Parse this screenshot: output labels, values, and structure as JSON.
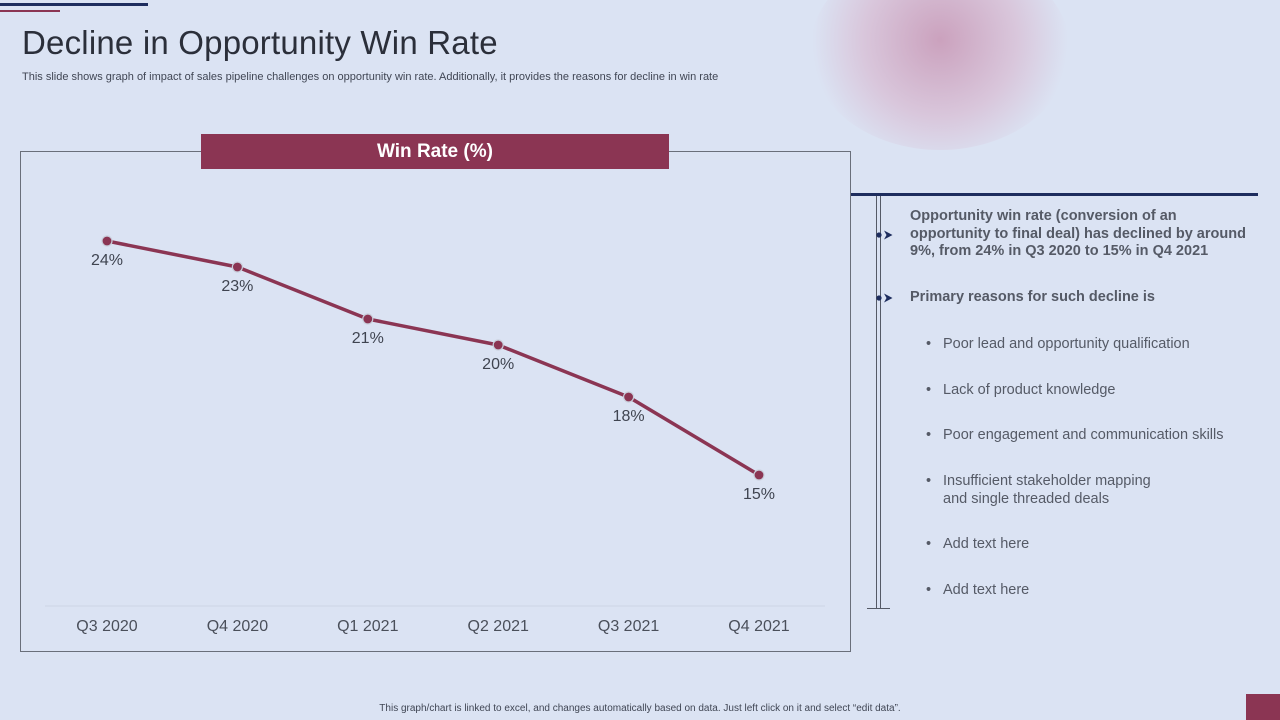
{
  "title": "Decline in Opportunity Win Rate",
  "subtitle": "This slide shows graph of impact of sales pipeline challenges on opportunity win rate. Additionally, it provides the reasons for decline in win rate",
  "chart_data": {
    "type": "line",
    "title": "Win Rate (%)",
    "categories": [
      "Q3 2020",
      "Q4 2020",
      "Q1 2021",
      "Q2 2021",
      "Q3 2021",
      "Q4 2021"
    ],
    "values": [
      24,
      23,
      21,
      20,
      18,
      15
    ],
    "value_labels": [
      "24%",
      "23%",
      "21%",
      "20%",
      "18%",
      "15%"
    ],
    "series_color": "#8b3553",
    "xlabel": "",
    "ylabel": "",
    "ylim": [
      0,
      28
    ],
    "grid": false
  },
  "insights": {
    "lead_items": [
      "Opportunity win rate (conversion of an opportunity to final deal) has declined by around 9%, from 24% in Q3 2020 to 15% in Q4 2021",
      "Primary reasons for such decline is"
    ],
    "bullet_char": "•",
    "reasons": [
      "Poor lead and opportunity qualification",
      "Lack of product knowledge",
      "Poor engagement and communication skills",
      "Insufficient stakeholder mapping and single threaded deals",
      "Add text here",
      "Add text here"
    ],
    "arrow_icon": "arrow-right-icon"
  },
  "footer": "This graph/chart is linked to excel, and changes automatically based on data. Just left click on it and select “edit data”.",
  "colors": {
    "background": "#dbe3f3",
    "accent": "#8b3553",
    "navy": "#1e2d5e",
    "text": "#555a66"
  }
}
